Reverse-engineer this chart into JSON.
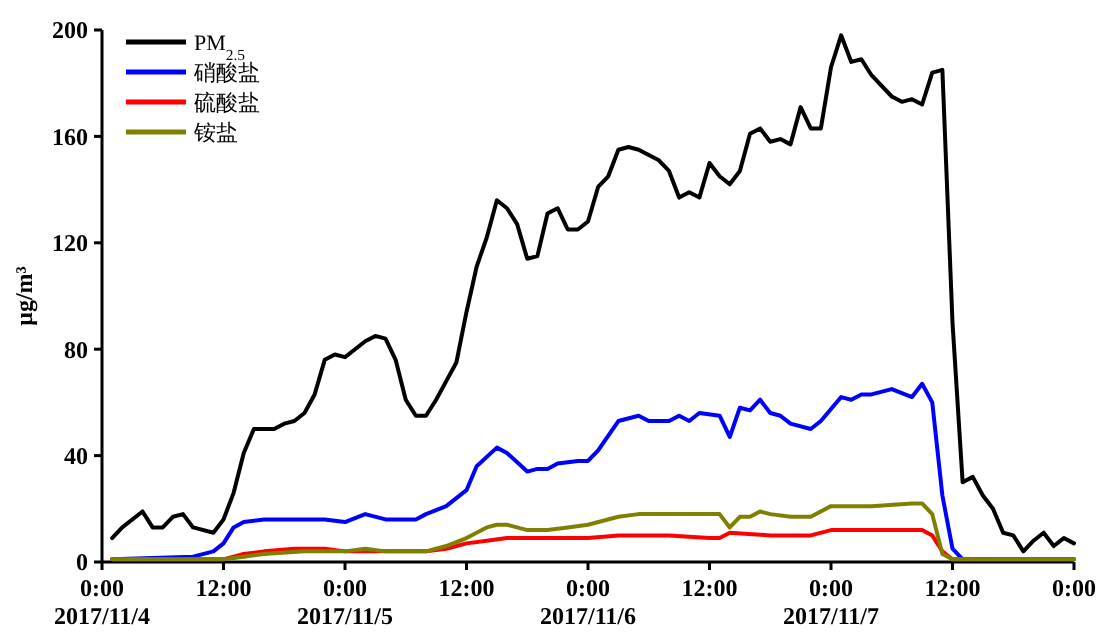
{
  "chart_data": {
    "type": "line",
    "ylabel": "μg/m³",
    "xlim": [
      "2017-11-04T00:00",
      "2017-11-08T00:00"
    ],
    "xticks": [
      {
        "value": "2017-11-04T00:00",
        "label": "0:00\n2017/11/4"
      },
      {
        "value": "2017-11-04T12:00",
        "label": "12:00"
      },
      {
        "value": "2017-11-05T00:00",
        "label": "0:00\n2017/11/5"
      },
      {
        "value": "2017-11-05T12:00",
        "label": "12:00"
      },
      {
        "value": "2017-11-06T00:00",
        "label": "0:00\n2017/11/6"
      },
      {
        "value": "2017-11-06T12:00",
        "label": "12:00"
      },
      {
        "value": "2017-11-07T00:00",
        "label": "0:00\n2017/11/7"
      },
      {
        "value": "2017-11-07T12:00",
        "label": "12:00"
      },
      {
        "value": "2017-11-08T00:00",
        "label": "0:00"
      }
    ],
    "ylim": [
      0,
      200
    ],
    "yticks": [
      0,
      40,
      80,
      120,
      160,
      200
    ],
    "legend": "top left",
    "series": [
      {
        "name": "PM$_{2.5}$",
        "color": "#000000",
        "x": [
          "2017-11-04T01:00",
          "2017-11-04T02:00",
          "2017-11-04T04:00",
          "2017-11-04T05:00",
          "2017-11-04T06:00",
          "2017-11-04T07:00",
          "2017-11-04T08:00",
          "2017-11-04T09:00",
          "2017-11-04T11:00",
          "2017-11-04T12:00",
          "2017-11-04T13:00",
          "2017-11-04T14:00",
          "2017-11-04T15:00",
          "2017-11-04T17:00",
          "2017-11-04T18:00",
          "2017-11-04T19:00",
          "2017-11-04T20:00",
          "2017-11-04T21:00",
          "2017-11-04T22:00",
          "2017-11-04T23:00",
          "2017-11-05T00:00",
          "2017-11-05T01:00",
          "2017-11-05T02:00",
          "2017-11-05T03:00",
          "2017-11-05T04:00",
          "2017-11-05T05:00",
          "2017-11-05T06:00",
          "2017-11-05T07:00",
          "2017-11-05T08:00",
          "2017-11-05T09:00",
          "2017-11-05T10:00",
          "2017-11-05T11:00",
          "2017-11-05T12:00",
          "2017-11-05T13:00",
          "2017-11-05T14:00",
          "2017-11-05T15:00",
          "2017-11-05T16:00",
          "2017-11-05T17:00",
          "2017-11-05T18:00",
          "2017-11-05T19:00",
          "2017-11-05T20:00",
          "2017-11-05T21:00",
          "2017-11-05T22:00",
          "2017-11-05T23:00",
          "2017-11-06T00:00",
          "2017-11-06T01:00",
          "2017-11-06T02:00",
          "2017-11-06T03:00",
          "2017-11-06T04:00",
          "2017-11-06T05:00",
          "2017-11-06T07:00",
          "2017-11-06T08:00",
          "2017-11-06T09:00",
          "2017-11-06T10:00",
          "2017-11-06T11:00",
          "2017-11-06T12:00",
          "2017-11-06T13:00",
          "2017-11-06T14:00",
          "2017-11-06T15:00",
          "2017-11-06T16:00",
          "2017-11-06T17:00",
          "2017-11-06T18:00",
          "2017-11-06T19:00",
          "2017-11-06T20:00",
          "2017-11-06T21:00",
          "2017-11-06T22:00",
          "2017-11-06T23:00",
          "2017-11-07T00:00",
          "2017-11-07T01:00",
          "2017-11-07T02:00",
          "2017-11-07T03:00",
          "2017-11-07T04:00",
          "2017-11-07T06:00",
          "2017-11-07T07:00",
          "2017-11-07T08:00",
          "2017-11-07T09:00",
          "2017-11-07T10:00",
          "2017-11-07T11:00",
          "2017-11-07T12:00",
          "2017-11-07T13:00",
          "2017-11-07T14:00",
          "2017-11-07T15:00",
          "2017-11-07T16:00",
          "2017-11-07T17:00",
          "2017-11-07T18:00",
          "2017-11-07T19:00",
          "2017-11-07T20:00",
          "2017-11-07T21:00",
          "2017-11-07T22:00",
          "2017-11-07T23:00",
          "2017-11-08T00:00"
        ],
        "values": [
          9,
          13,
          19,
          13,
          13,
          17,
          18,
          13,
          11,
          16,
          26,
          41,
          50,
          50,
          52,
          53,
          56,
          63,
          76,
          78,
          77,
          80,
          83,
          85,
          84,
          76,
          61,
          55,
          55,
          61,
          68,
          75,
          94,
          111,
          122,
          136,
          133,
          127,
          114,
          115,
          131,
          133,
          125,
          125,
          128,
          141,
          145,
          155,
          156,
          155,
          151,
          147,
          137,
          139,
          137,
          150,
          145,
          142,
          147,
          161,
          163,
          158,
          159,
          157,
          171,
          163,
          163,
          186,
          198,
          188,
          189,
          183,
          175,
          173,
          174,
          172,
          184,
          185,
          90,
          30,
          32,
          25,
          20,
          11,
          10,
          4,
          8,
          11,
          6,
          9,
          7
        ]
      },
      {
        "name": "硝酸盐",
        "color": "#0000ff",
        "x": [
          "2017-11-04T01:00",
          "2017-11-04T09:00",
          "2017-11-04T11:00",
          "2017-11-04T12:00",
          "2017-11-04T13:00",
          "2017-11-04T14:00",
          "2017-11-04T16:00",
          "2017-11-04T20:00",
          "2017-11-04T22:00",
          "2017-11-05T00:00",
          "2017-11-05T02:00",
          "2017-11-05T04:00",
          "2017-11-05T07:00",
          "2017-11-05T08:00",
          "2017-11-05T10:00",
          "2017-11-05T12:00",
          "2017-11-05T13:00",
          "2017-11-05T15:00",
          "2017-11-05T16:00",
          "2017-11-05T18:00",
          "2017-11-05T19:00",
          "2017-11-05T20:00",
          "2017-11-05T21:00",
          "2017-11-05T23:00",
          "2017-11-06T00:00",
          "2017-11-06T01:00",
          "2017-11-06T03:00",
          "2017-11-06T05:00",
          "2017-11-06T06:00",
          "2017-11-06T08:00",
          "2017-11-06T09:00",
          "2017-11-06T10:00",
          "2017-11-06T11:00",
          "2017-11-06T13:00",
          "2017-11-06T14:00",
          "2017-11-06T15:00",
          "2017-11-06T16:00",
          "2017-11-06T17:00",
          "2017-11-06T18:00",
          "2017-11-06T19:00",
          "2017-11-06T20:00",
          "2017-11-06T22:00",
          "2017-11-06T23:00",
          "2017-11-07T01:00",
          "2017-11-07T02:00",
          "2017-11-07T03:00",
          "2017-11-07T04:00",
          "2017-11-07T06:00",
          "2017-11-07T08:00",
          "2017-11-07T09:00",
          "2017-11-07T10:00",
          "2017-11-07T11:00",
          "2017-11-07T12:00",
          "2017-11-07T13:00",
          "2017-11-08T00:00"
        ],
        "values": [
          1,
          2,
          4,
          7,
          13,
          15,
          16,
          16,
          16,
          15,
          18,
          16,
          16,
          18,
          21,
          27,
          36,
          43,
          41,
          34,
          35,
          35,
          37,
          38,
          38,
          42,
          53,
          55,
          53,
          53,
          55,
          53,
          56,
          55,
          47,
          58,
          57,
          61,
          56,
          55,
          52,
          50,
          53,
          62,
          61,
          63,
          63,
          65,
          62,
          67,
          60,
          25,
          5,
          1,
          1
        ]
      },
      {
        "name": "硫酸盐",
        "color": "#ff0000",
        "x": [
          "2017-11-04T01:00",
          "2017-11-04T11:00",
          "2017-11-04T12:00",
          "2017-11-04T14:00",
          "2017-11-04T16:00",
          "2017-11-04T19:00",
          "2017-11-04T21:00",
          "2017-11-04T22:00",
          "2017-11-05T00:00",
          "2017-11-05T04:00",
          "2017-11-05T08:00",
          "2017-11-05T10:00",
          "2017-11-05T12:00",
          "2017-11-05T14:00",
          "2017-11-05T16:00",
          "2017-11-05T20:00",
          "2017-11-06T00:00",
          "2017-11-06T03:00",
          "2017-11-06T08:00",
          "2017-11-06T12:00",
          "2017-11-06T13:00",
          "2017-11-06T14:00",
          "2017-11-06T18:00",
          "2017-11-06T22:00",
          "2017-11-07T00:00",
          "2017-11-07T06:00",
          "2017-11-07T09:00",
          "2017-11-07T10:00",
          "2017-11-07T11:00",
          "2017-11-07T12:00",
          "2017-11-08T00:00"
        ],
        "values": [
          1,
          1,
          1,
          3,
          4,
          5,
          5,
          5,
          4,
          4,
          4,
          5,
          7,
          8,
          9,
          9,
          9,
          10,
          10,
          9,
          9,
          11,
          10,
          10,
          12,
          12,
          12,
          10,
          4,
          1,
          1
        ]
      },
      {
        "name": "铵盐",
        "color": "#808000",
        "x": [
          "2017-11-04T01:00",
          "2017-11-04T12:00",
          "2017-11-04T14:00",
          "2017-11-04T16:00",
          "2017-11-04T20:00",
          "2017-11-05T00:00",
          "2017-11-05T02:00",
          "2017-11-05T04:00",
          "2017-11-05T08:00",
          "2017-11-05T10:00",
          "2017-11-05T12:00",
          "2017-11-05T14:00",
          "2017-11-05T15:00",
          "2017-11-05T16:00",
          "2017-11-05T18:00",
          "2017-11-05T20:00",
          "2017-11-05T22:00",
          "2017-11-06T00:00",
          "2017-11-06T03:00",
          "2017-11-06T05:00",
          "2017-11-06T12:00",
          "2017-11-06T13:00",
          "2017-11-06T14:00",
          "2017-11-06T15:00",
          "2017-11-06T16:00",
          "2017-11-06T17:00",
          "2017-11-06T18:00",
          "2017-11-06T20:00",
          "2017-11-06T22:00",
          "2017-11-07T00:00",
          "2017-11-07T04:00",
          "2017-11-07T08:00",
          "2017-11-07T09:00",
          "2017-11-07T10:00",
          "2017-11-07T11:00",
          "2017-11-07T12:00",
          "2017-11-08T00:00"
        ],
        "values": [
          1,
          1,
          2,
          3,
          4,
          4,
          5,
          4,
          4,
          6,
          9,
          13,
          14,
          14,
          12,
          12,
          13,
          14,
          17,
          18,
          18,
          18,
          13,
          17,
          17,
          19,
          18,
          17,
          17,
          21,
          21,
          22,
          22,
          18,
          3,
          1,
          1
        ]
      }
    ]
  }
}
